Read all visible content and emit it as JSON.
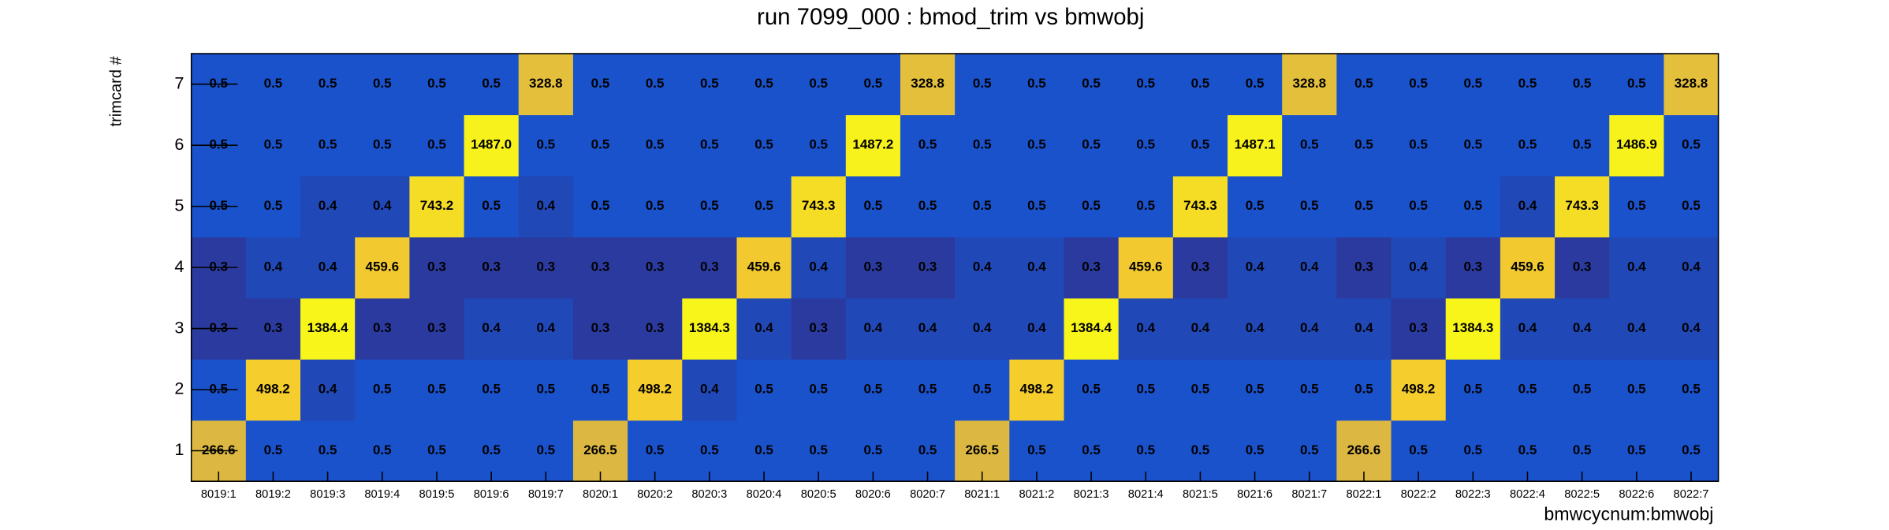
{
  "chart_data": {
    "type": "heatmap",
    "title": "run 7099_000 : bmod_trim vs bmwobj",
    "x_label": "bmwcycnum:bmwobj",
    "y_label": "trimcard #",
    "categories": [
      "8019:1",
      "8019:2",
      "8019:3",
      "8019:4",
      "8019:5",
      "8019:6",
      "8019:7",
      "8020:1",
      "8020:2",
      "8020:3",
      "8020:4",
      "8020:5",
      "8020:6",
      "8020:7",
      "8021:1",
      "8021:2",
      "8021:3",
      "8021:4",
      "8021:5",
      "8021:6",
      "8021:7",
      "8022:1",
      "8022:2",
      "8022:3",
      "8022:4",
      "8022:5",
      "8022:6",
      "8022:7"
    ],
    "ylim": [
      0.5,
      7.5
    ],
    "yticks": [
      1,
      2,
      3,
      4,
      5,
      6,
      7
    ],
    "values": [
      [
        266.6,
        0.5,
        0.5,
        0.5,
        0.5,
        0.5,
        0.5,
        266.5,
        0.5,
        0.5,
        0.5,
        0.5,
        0.5,
        0.5,
        266.5,
        0.5,
        0.5,
        0.5,
        0.5,
        0.5,
        0.5,
        266.6,
        0.5,
        0.5,
        0.5,
        0.5,
        0.5,
        0.5
      ],
      [
        0.5,
        498.2,
        0.4,
        0.5,
        0.5,
        0.5,
        0.5,
        0.5,
        498.2,
        0.4,
        0.5,
        0.5,
        0.5,
        0.5,
        0.5,
        498.2,
        0.5,
        0.5,
        0.5,
        0.5,
        0.5,
        0.5,
        498.2,
        0.5,
        0.5,
        0.5,
        0.5,
        0.5
      ],
      [
        0.3,
        0.3,
        1384.4,
        0.3,
        0.3,
        0.4,
        0.4,
        0.3,
        0.3,
        1384.3,
        0.4,
        0.3,
        0.4,
        0.4,
        0.4,
        0.4,
        1384.4,
        0.4,
        0.4,
        0.4,
        0.4,
        0.4,
        0.3,
        1384.3,
        0.4,
        0.4,
        0.4,
        0.4
      ],
      [
        0.3,
        0.4,
        0.4,
        459.6,
        0.3,
        0.3,
        0.3,
        0.3,
        0.3,
        0.3,
        459.6,
        0.4,
        0.3,
        0.3,
        0.4,
        0.4,
        0.3,
        459.6,
        0.3,
        0.4,
        0.4,
        0.3,
        0.4,
        0.3,
        459.6,
        0.3,
        0.4,
        0.4
      ],
      [
        0.5,
        0.5,
        0.4,
        0.4,
        743.2,
        0.5,
        0.4,
        0.5,
        0.5,
        0.5,
        0.5,
        743.3,
        0.5,
        0.5,
        0.5,
        0.5,
        0.5,
        0.5,
        743.3,
        0.5,
        0.5,
        0.5,
        0.5,
        0.5,
        0.4,
        743.3,
        0.5,
        0.5
      ],
      [
        0.5,
        0.5,
        0.5,
        0.5,
        0.5,
        1487,
        0.5,
        0.5,
        0.5,
        0.5,
        0.5,
        0.5,
        1487.2,
        0.5,
        0.5,
        0.5,
        0.5,
        0.5,
        0.5,
        1487.1,
        0.5,
        0.5,
        0.5,
        0.5,
        0.5,
        0.5,
        1486.9,
        0.5
      ],
      [
        0.5,
        0.5,
        0.5,
        0.5,
        0.5,
        0.5,
        328.8,
        0.5,
        0.5,
        0.5,
        0.5,
        0.5,
        0.5,
        328.8,
        0.5,
        0.5,
        0.5,
        0.5,
        0.5,
        0.5,
        328.8,
        0.5,
        0.5,
        0.5,
        0.5,
        0.5,
        0.5,
        328.8
      ]
    ],
    "value_labels": [
      [
        "266.6",
        "0.5",
        "0.5",
        "0.5",
        "0.5",
        "0.5",
        "0.5",
        "266.5",
        "0.5",
        "0.5",
        "0.5",
        "0.5",
        "0.5",
        "0.5",
        "266.5",
        "0.5",
        "0.5",
        "0.5",
        "0.5",
        "0.5",
        "0.5",
        "266.6",
        "0.5",
        "0.5",
        "0.5",
        "0.5",
        "0.5",
        "0.5"
      ],
      [
        "0.5",
        "498.2",
        "0.4",
        "0.5",
        "0.5",
        "0.5",
        "0.5",
        "0.5",
        "498.2",
        "0.4",
        "0.5",
        "0.5",
        "0.5",
        "0.5",
        "0.5",
        "498.2",
        "0.5",
        "0.5",
        "0.5",
        "0.5",
        "0.5",
        "0.5",
        "498.2",
        "0.5",
        "0.5",
        "0.5",
        "0.5",
        "0.5"
      ],
      [
        "0.3",
        "0.3",
        "1384.4",
        "0.3",
        "0.3",
        "0.4",
        "0.4",
        "0.3",
        "0.3",
        "1384.3",
        "0.4",
        "0.3",
        "0.4",
        "0.4",
        "0.4",
        "0.4",
        "1384.4",
        "0.4",
        "0.4",
        "0.4",
        "0.4",
        "0.4",
        "0.3",
        "1384.3",
        "0.4",
        "0.4",
        "0.4",
        "0.4"
      ],
      [
        "0.3",
        "0.4",
        "0.4",
        "459.6",
        "0.3",
        "0.3",
        "0.3",
        "0.3",
        "0.3",
        "0.3",
        "459.6",
        "0.4",
        "0.3",
        "0.3",
        "0.4",
        "0.4",
        "0.3",
        "459.6",
        "0.3",
        "0.4",
        "0.4",
        "0.3",
        "0.4",
        "0.3",
        "459.6",
        "0.3",
        "0.4",
        "0.4"
      ],
      [
        "0.5",
        "0.5",
        "0.4",
        "0.4",
        "743.2",
        "0.5",
        "0.4",
        "0.5",
        "0.5",
        "0.5",
        "0.5",
        "743.3",
        "0.5",
        "0.5",
        "0.5",
        "0.5",
        "0.5",
        "0.5",
        "743.3",
        "0.5",
        "0.5",
        "0.5",
        "0.5",
        "0.5",
        "0.4",
        "743.3",
        "0.5",
        "0.5"
      ],
      [
        "0.5",
        "0.5",
        "0.5",
        "0.5",
        "0.5",
        "1487.0",
        "0.5",
        "0.5",
        "0.5",
        "0.5",
        "0.5",
        "0.5",
        "1487.2",
        "0.5",
        "0.5",
        "0.5",
        "0.5",
        "0.5",
        "0.5",
        "1487.1",
        "0.5",
        "0.5",
        "0.5",
        "0.5",
        "0.5",
        "0.5",
        "1486.9",
        "0.5"
      ],
      [
        "0.5",
        "0.5",
        "0.5",
        "0.5",
        "0.5",
        "0.5",
        "328.8",
        "0.5",
        "0.5",
        "0.5",
        "0.5",
        "0.5",
        "0.5",
        "328.8",
        "0.5",
        "0.5",
        "0.5",
        "0.5",
        "0.5",
        "0.5",
        "328.8",
        "0.5",
        "0.5",
        "0.5",
        "0.5",
        "0.5",
        "0.5",
        "328.8"
      ]
    ],
    "color_scale": [
      {
        "value": 0.3,
        "color": "#2b3a9e"
      },
      {
        "value": 0.5,
        "color": "#1a52cb"
      },
      {
        "value": 266.5,
        "color": "#dcb842"
      },
      {
        "value": 498.2,
        "color": "#f5cd2c"
      },
      {
        "value": 1384.3,
        "color": "#f8f51a"
      },
      {
        "value": 1487,
        "color": "#f8f21c"
      }
    ],
    "log_color_scale": true
  }
}
